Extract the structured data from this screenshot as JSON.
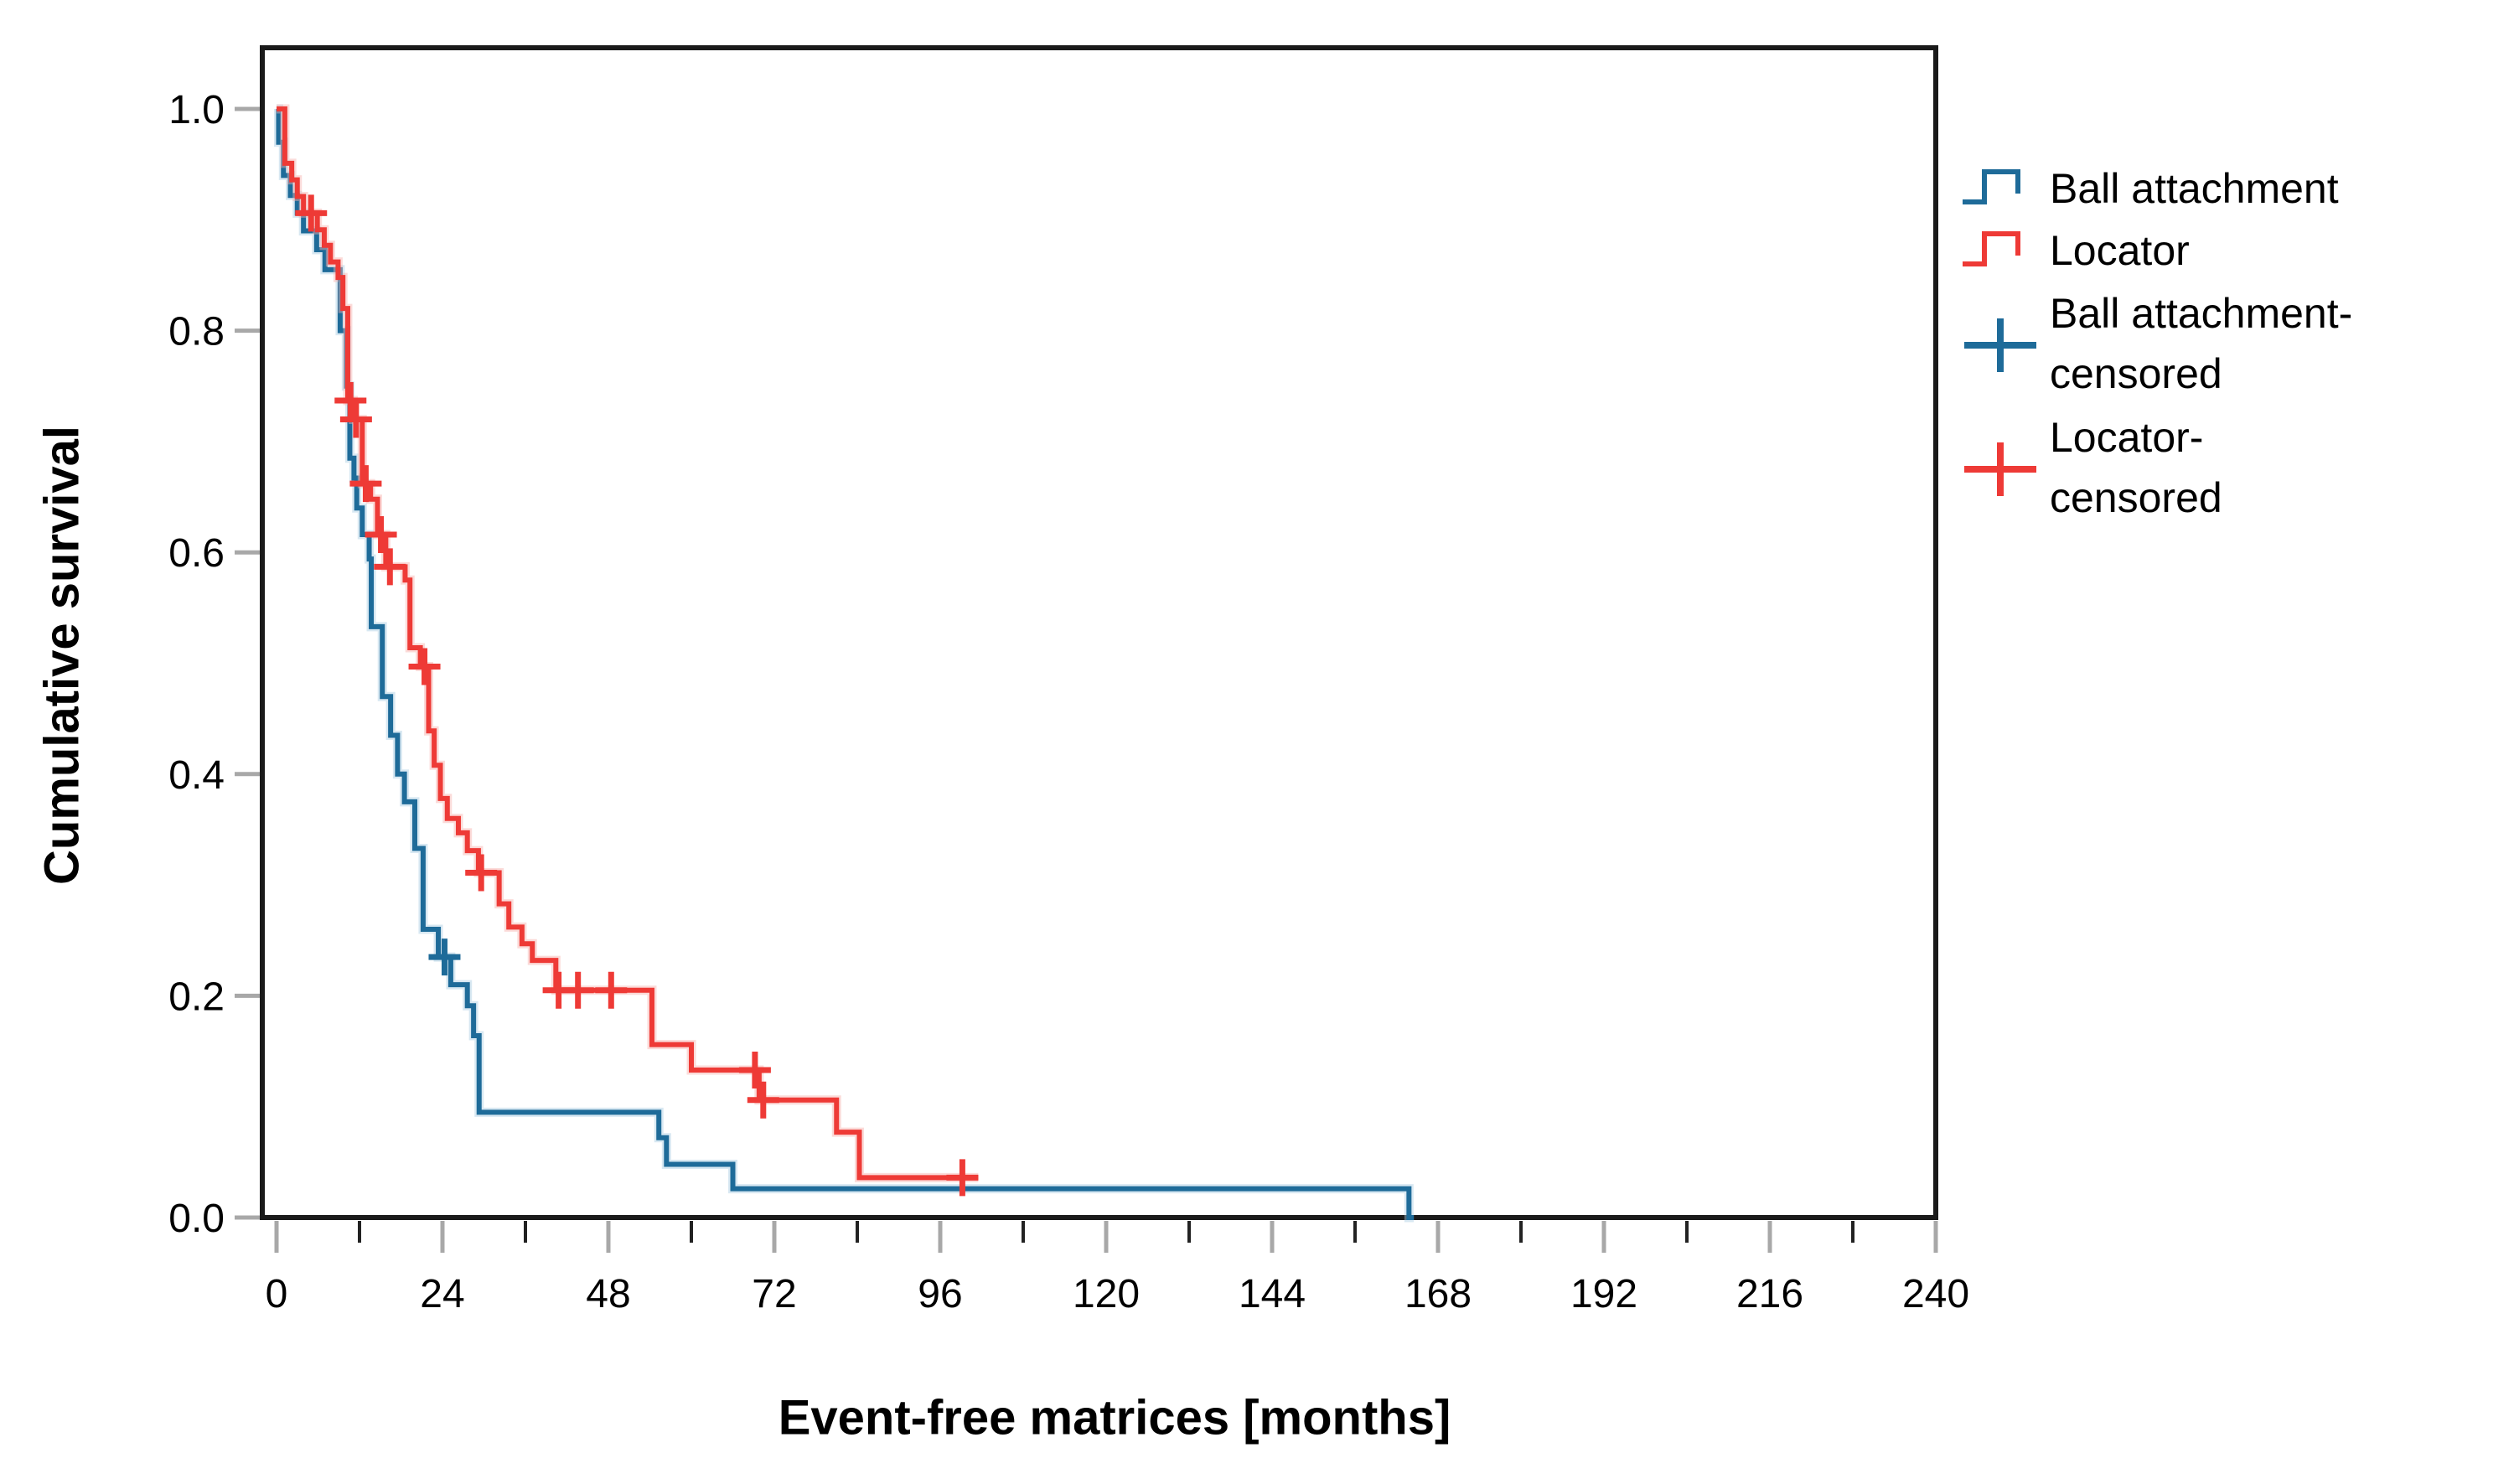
{
  "chart_data": {
    "type": "line",
    "subtype": "kaplan-meier-step-curves",
    "title": "",
    "xlabel": "Event-free matrices [months]",
    "ylabel": "Cumulative survival",
    "xlim": [
      0,
      240
    ],
    "ylim": [
      0.0,
      1.0
    ],
    "grid": false,
    "legend_position": "right",
    "axis_colors": {
      "frame": "#1a1a1a",
      "major_tick": "#a8a8a8",
      "minor_tick": "#222222",
      "tick_label": "#000000"
    },
    "x_ticks": [
      {
        "v": 0,
        "label": "0"
      },
      {
        "v": 24,
        "label": "24"
      },
      {
        "v": 48,
        "label": "48"
      },
      {
        "v": 72,
        "label": "72"
      },
      {
        "v": 96,
        "label": "96"
      },
      {
        "v": 120,
        "label": "120"
      },
      {
        "v": 144,
        "label": "144"
      },
      {
        "v": 168,
        "label": "168"
      },
      {
        "v": 192,
        "label": "192"
      },
      {
        "v": 216,
        "label": "216"
      },
      {
        "v": 240,
        "label": "240"
      }
    ],
    "x_minor_ticks": [
      12,
      36,
      60,
      84,
      108,
      132,
      156,
      180,
      204,
      228
    ],
    "y_ticks": [
      {
        "v": 0.0,
        "label": "0.0"
      },
      {
        "v": 0.2,
        "label": "0.2"
      },
      {
        "v": 0.4,
        "label": "0.4"
      },
      {
        "v": 0.6,
        "label": "0.6"
      },
      {
        "v": 0.8,
        "label": "0.8"
      },
      {
        "v": 1.0,
        "label": "1.0"
      }
    ],
    "series": [
      {
        "name": "Ball attachment",
        "color": "#1e6b99",
        "halo": "#a9cde2",
        "start": [
          0,
          1.0
        ],
        "steps": [
          [
            0.3,
            0.97
          ],
          [
            1.0,
            0.94
          ],
          [
            2.0,
            0.922
          ],
          [
            3.0,
            0.906
          ],
          [
            3.9,
            0.89
          ],
          [
            5.8,
            0.873
          ],
          [
            7.0,
            0.855
          ],
          [
            9.2,
            0.8
          ],
          [
            10.1,
            0.75
          ],
          [
            10.6,
            0.685
          ],
          [
            11.2,
            0.667
          ],
          [
            11.6,
            0.64
          ],
          [
            12.4,
            0.616
          ],
          [
            13.4,
            0.594
          ],
          [
            13.7,
            0.533
          ],
          [
            15.3,
            0.47
          ],
          [
            16.5,
            0.435
          ],
          [
            17.5,
            0.4
          ],
          [
            18.5,
            0.375
          ],
          [
            20.0,
            0.333
          ],
          [
            21.2,
            0.26
          ],
          [
            23.4,
            0.235
          ],
          [
            25.2,
            0.21
          ],
          [
            27.6,
            0.191
          ],
          [
            28.5,
            0.164
          ],
          [
            29.3,
            0.095
          ],
          [
            55.3,
            0.072
          ],
          [
            56.4,
            0.048
          ],
          [
            66.0,
            0.026
          ],
          [
            163.8,
            0.0
          ]
        ],
        "end_t": 164.5,
        "censored": [
          [
            24.3,
            0.235
          ]
        ]
      },
      {
        "name": "Locator",
        "color": "#ee3a36",
        "halo": "#f6b0aa",
        "start": [
          0,
          1.0
        ],
        "steps": [
          [
            1.2,
            0.951
          ],
          [
            2.2,
            0.936
          ],
          [
            3.0,
            0.921
          ],
          [
            3.9,
            0.906
          ],
          [
            5.9,
            0.891
          ],
          [
            6.9,
            0.877
          ],
          [
            7.8,
            0.862
          ],
          [
            8.9,
            0.848
          ],
          [
            9.6,
            0.82
          ],
          [
            10.3,
            0.737
          ],
          [
            11.1,
            0.72
          ],
          [
            12.4,
            0.662
          ],
          [
            13.6,
            0.648
          ],
          [
            14.6,
            0.616
          ],
          [
            15.8,
            0.587
          ],
          [
            18.6,
            0.575
          ],
          [
            19.3,
            0.514
          ],
          [
            20.8,
            0.497
          ],
          [
            22.0,
            0.439
          ],
          [
            22.8,
            0.408
          ],
          [
            23.7,
            0.378
          ],
          [
            24.7,
            0.36
          ],
          [
            26.3,
            0.347
          ],
          [
            27.6,
            0.331
          ],
          [
            29.2,
            0.311
          ],
          [
            32.2,
            0.283
          ],
          [
            33.6,
            0.262
          ],
          [
            35.5,
            0.247
          ],
          [
            37.0,
            0.232
          ],
          [
            40.4,
            0.205
          ],
          [
            54.3,
            0.156
          ],
          [
            60.0,
            0.133
          ],
          [
            69.8,
            0.106
          ],
          [
            81.0,
            0.077
          ],
          [
            84.3,
            0.036
          ]
        ],
        "end_t": 101.5,
        "censored": [
          [
            5.0,
            0.906
          ],
          [
            10.7,
            0.737
          ],
          [
            11.5,
            0.72
          ],
          [
            12.9,
            0.662
          ],
          [
            15.1,
            0.616
          ],
          [
            16.4,
            0.587
          ],
          [
            21.4,
            0.497
          ],
          [
            29.6,
            0.311
          ],
          [
            40.8,
            0.205
          ],
          [
            43.6,
            0.205
          ],
          [
            48.4,
            0.205
          ],
          [
            69.2,
            0.133
          ],
          [
            70.4,
            0.106
          ],
          [
            99.2,
            0.036
          ]
        ]
      }
    ],
    "legend": {
      "items": [
        {
          "symbol": "step",
          "series_index": 0,
          "line1": "Ball attachment",
          "line2": ""
        },
        {
          "symbol": "step",
          "series_index": 1,
          "line1": "Locator",
          "line2": ""
        },
        {
          "symbol": "plus",
          "series_index": 0,
          "line1": "Ball attachment-",
          "line2": "censored"
        },
        {
          "symbol": "plus",
          "series_index": 1,
          "line1": "Locator-",
          "line2": "censored"
        }
      ]
    }
  }
}
